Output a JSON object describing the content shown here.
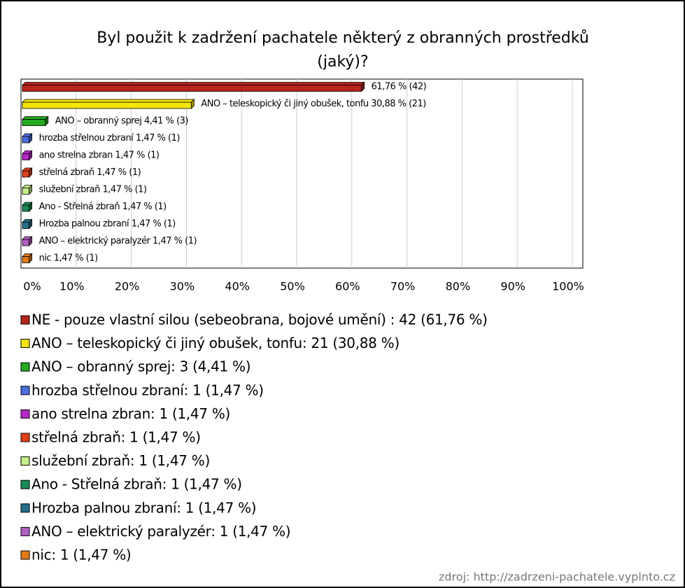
{
  "chart_data": {
    "type": "bar",
    "title": [
      "Byl použit k zadržení pachatele některý z obranných prostředků",
      "(jaký)?"
    ],
    "values": [
      61.76,
      30.88,
      4.41,
      1.47,
      1.47,
      1.47,
      1.47,
      1.47,
      1.47,
      1.47,
      1.47
    ],
    "bar_labels": [
      "61,76 % (42)",
      "ANO – teleskopický či jiný obušek, tonfu 30,88 % (21)",
      "ANO – obranný sprej 4,41 % (3)",
      "hrozba střelnou zbraní 1,47 % (1)",
      "ano strelna zbran 1,47 % (1)",
      "střelná zbraň 1,47 % (1)",
      "služební zbraň 1,47 % (1)",
      "Ano - Střelná zbraň 1,47 % (1)",
      "Hrozba palnou zbraní 1,47 % (1)",
      "ANO – elektrický paralyzér 1,47 % (1)",
      "nic 1,47 % (1)"
    ],
    "legend_labels": [
      "NE - pouze vlastní silou (sebeobrana, bojové umění) : 42 (61,76 %)",
      "ANO – teleskopický či jiný obušek, tonfu: 21 (30,88 %)",
      "ANO – obranný sprej: 3 (4,41 %)",
      "hrozba střelnou zbraní: 1 (1,47 %)",
      "ano strelna zbran: 1 (1,47 %)",
      "střelná zbraň: 1 (1,47 %)",
      "služební zbraň: 1 (1,47 %)",
      "Ano - Střelná zbraň: 1 (1,47 %)",
      "Hrozba palnou zbraní: 1 (1,47 %)",
      "ANO – elektrický paralyzér: 1 (1,47 %)",
      "nic: 1 (1,47 %)"
    ],
    "colors": [
      "#b8241c",
      "#f2e40c",
      "#22aa22",
      "#4a6ee0",
      "#b526c8",
      "#e0401a",
      "#c4f08a",
      "#1a8a55",
      "#24708a",
      "#b060c0",
      "#e07a18"
    ],
    "xlim": [
      0,
      100
    ],
    "xticks": [
      {
        "value": 0,
        "label": "0%"
      },
      {
        "value": 10,
        "label": "10%"
      },
      {
        "value": 20,
        "label": "20%"
      },
      {
        "value": 30,
        "label": "30%"
      },
      {
        "value": 40,
        "label": "40%"
      },
      {
        "value": 50,
        "label": "50%"
      },
      {
        "value": 60,
        "label": "60%"
      },
      {
        "value": 70,
        "label": "70%"
      },
      {
        "value": 80,
        "label": "80%"
      },
      {
        "value": 90,
        "label": "90%"
      },
      {
        "value": 100,
        "label": "100%"
      }
    ],
    "grid": true,
    "source": "zdroj: http://zadrzeni-pachatele.vyplnto.cz"
  }
}
